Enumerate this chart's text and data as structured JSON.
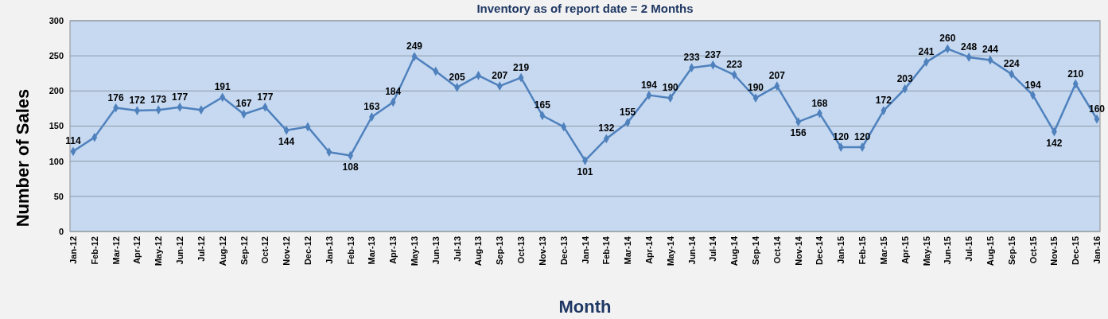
{
  "chart_data": {
    "type": "line",
    "title": "Inventory as of report date = 2 Months",
    "xlabel": "Month",
    "ylabel": "Number of Sales",
    "categories": [
      "Jan-12",
      "Feb-12",
      "Mar-12",
      "Apr-12",
      "May-12",
      "Jun-12",
      "Jul-12",
      "Aug-12",
      "Sep-12",
      "Oct-12",
      "Nov-12",
      "Dec-12",
      "Jan-13",
      "Feb-13",
      "Mar-13",
      "Apr-13",
      "May-13",
      "Jun-13",
      "Jul-13",
      "Aug-13",
      "Sep-13",
      "Oct-13",
      "Nov-13",
      "Dec-13",
      "Jan-14",
      "Feb-14",
      "Mar-14",
      "Apr-14",
      "May-14",
      "Jun-14",
      "Jul-14",
      "Aug-14",
      "Sep-14",
      "Oct-14",
      "Nov-14",
      "Dec-14",
      "Jan-15",
      "Feb-15",
      "Mar-15",
      "Apr-15",
      "May-15",
      "Jun-15",
      "Jul-15",
      "Aug-15",
      "Sep-15",
      "Oct-15",
      "Nov-15",
      "Dec-15",
      "Jan-16"
    ],
    "series": [
      {
        "color": "#4f81bd",
        "values": [
          114,
          134,
          176,
          172,
          173,
          177,
          173,
          191,
          167,
          177,
          144,
          149,
          113,
          108,
          163,
          184,
          249,
          228,
          205,
          222,
          207,
          219,
          165,
          149,
          101,
          132,
          155,
          194,
          190,
          233,
          237,
          223,
          190,
          207,
          156,
          168,
          120,
          120,
          172,
          203,
          241,
          260,
          248,
          244,
          224,
          194,
          142,
          210,
          160
        ],
        "value_labels": [
          "114",
          null,
          "176",
          "172",
          "173",
          "177",
          null,
          "191",
          "167",
          "177",
          "144",
          null,
          null,
          "108",
          "163",
          "184",
          "249",
          null,
          "205",
          null,
          "207",
          "219",
          "165",
          null,
          "101",
          "132",
          "155",
          "194",
          "190",
          "233",
          "237",
          "223",
          "190",
          "207",
          "156",
          "168",
          "120",
          "120",
          "172",
          "203",
          "241",
          "260",
          "248",
          "244",
          "224",
          "194",
          "142",
          "210",
          "160"
        ]
      }
    ],
    "ylim": [
      0,
      300
    ],
    "yticks": [
      0,
      50,
      100,
      150,
      200,
      250,
      300
    ],
    "grid": "y",
    "marker": "diamond",
    "line_style": "solid"
  }
}
